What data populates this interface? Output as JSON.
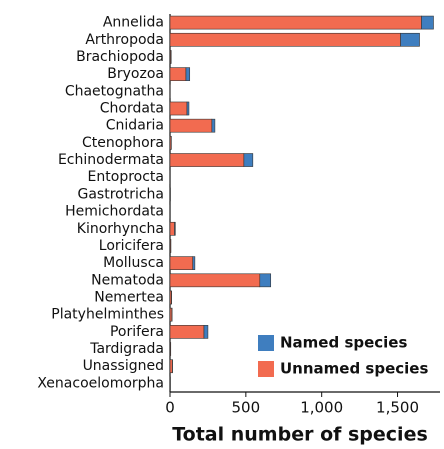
{
  "chart_data": {
    "type": "stacked_hbar",
    "xlabel": "Total number of species",
    "categories": [
      "Annelida",
      "Arthropoda",
      "Brachiopoda",
      "Bryozoa",
      "Chaetognatha",
      "Chordata",
      "Cnidaria",
      "Ctenophora",
      "Echinodermata",
      "Entoprocta",
      "Gastrotricha",
      "Hemichordata",
      "Kinorhyncha",
      "Loricifera",
      "Mollusca",
      "Nematoda",
      "Nemertea",
      "Platyhelminthes",
      "Porifera",
      "Tardigrada",
      "Unassigned",
      "Xenacoelomorpha"
    ],
    "series": [
      {
        "name": "Named species",
        "color": "#3f7ebf",
        "values": [
          79,
          125,
          3,
          25,
          0,
          13,
          20,
          1,
          59,
          0,
          0,
          0,
          5,
          1,
          14,
          72,
          1,
          2,
          26,
          1,
          2,
          0
        ]
      },
      {
        "name": "Unnamed species",
        "color": "#f26b50",
        "values": [
          1658,
          1520,
          5,
          105,
          1,
          112,
          276,
          8,
          487,
          2,
          3,
          2,
          30,
          5,
          150,
          592,
          10,
          12,
          224,
          4,
          15,
          3
        ]
      }
    ],
    "xlim": [
      0,
      1780
    ],
    "xticks": [
      0,
      500,
      {
        "value": 1000,
        "label": "1,000"
      },
      {
        "value": 1500,
        "label": "1,500"
      }
    ],
    "legend": "lower right"
  }
}
